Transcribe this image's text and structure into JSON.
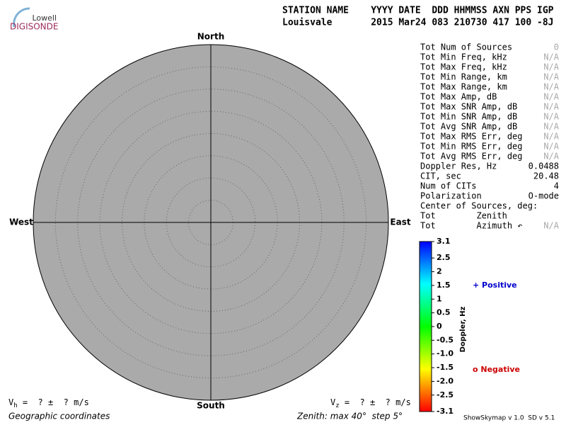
{
  "chart_data": {
    "type": "skymap",
    "logo": {
      "top": "Lowell",
      "bottom": "DIGISONDE"
    },
    "header": [
      "STATION NAME    YYYY DATE  DDD HHMMSS AXN PPS IGP",
      "Louisvale       2015 Mar24 083 210730 417 100 -8J"
    ],
    "directions": {
      "north": "North",
      "south": "South",
      "west": "West",
      "east": "East"
    },
    "stats": [
      {
        "label": "Tot Num of Sources",
        "value": "0",
        "color": "#aaaaaa"
      },
      {
        "label": "Tot Min Freq, kHz",
        "value": "N/A",
        "color": "#aaaaaa"
      },
      {
        "label": "Tot Max Freq, kHz",
        "value": "N/A",
        "color": "#aaaaaa"
      },
      {
        "label": "Tot Min Range, km",
        "value": "N/A",
        "color": "#aaaaaa"
      },
      {
        "label": "Tot Max Range, km",
        "value": "N/A",
        "color": "#aaaaaa"
      },
      {
        "label": "Tot Max Amp, dB",
        "value": "N/A",
        "color": "#aaaaaa"
      },
      {
        "label": "Tot Max SNR Amp, dB",
        "value": "N/A",
        "color": "#aaaaaa"
      },
      {
        "label": "Tot Min SNR Amp, dB",
        "value": "N/A",
        "color": "#aaaaaa"
      },
      {
        "label": "Tot Avg SNR Amp, dB",
        "value": "N/A",
        "color": "#aaaaaa"
      },
      {
        "label": "Tot Max RMS Err, deg",
        "value": "N/A",
        "color": "#aaaaaa"
      },
      {
        "label": "Tot Min RMS Err, deg",
        "value": "N/A",
        "color": "#aaaaaa"
      },
      {
        "label": "Tot Avg RMS Err, deg",
        "value": "N/A",
        "color": "#aaaaaa"
      },
      {
        "label": "Doppler Res, Hz",
        "value": "0.0488",
        "color": "#000000"
      },
      {
        "label": "CIT, sec",
        "value": "20.48",
        "color": "#000000"
      },
      {
        "label": "Num of CITs",
        "value": "4",
        "color": "#000000"
      },
      {
        "label": "Polarization",
        "value": "O-mode",
        "color": "#000000"
      },
      {
        "label": "Center of Sources, deg:"
      },
      {
        "label": "Tot        Zenith"
      },
      {
        "label": "Tot        Azimuth ↶",
        "value": "N/A",
        "color": "#aaaaaa"
      }
    ],
    "colorbar": {
      "label": "Doppler, Hz",
      "lim": [
        -3.1,
        3.1
      ],
      "ticks": [
        3.1,
        2.5,
        2,
        1.5,
        1,
        0.5,
        0,
        -0.5,
        {
          "value": -1,
          "label": "-1.0"
        },
        -1.5,
        {
          "value": -2,
          "label": "-2.0"
        },
        -2.5,
        -3.1
      ],
      "colors": [
        "#0000ff",
        "#00ffff",
        "#00ff00",
        "#ffff00",
        "#ff0000"
      ]
    },
    "legend": [
      {
        "name": "+ Positive",
        "color": "#0000cc"
      },
      {
        "name": "o Negative",
        "color": "#cc0000"
      }
    ],
    "vh": {
      "symbol": "V",
      "sub": "h",
      "text": " =  ? ±  ? m/s"
    },
    "vz": {
      "symbol": "V",
      "sub": "z",
      "text": " =  ? ±  ? m/s"
    },
    "footer_left": "Geographic coordinates",
    "footer_zenith": "Zenith: max 40°  step 5°",
    "footer_version": "ShowSkymap v 1.0  SD v 5.1"
  }
}
